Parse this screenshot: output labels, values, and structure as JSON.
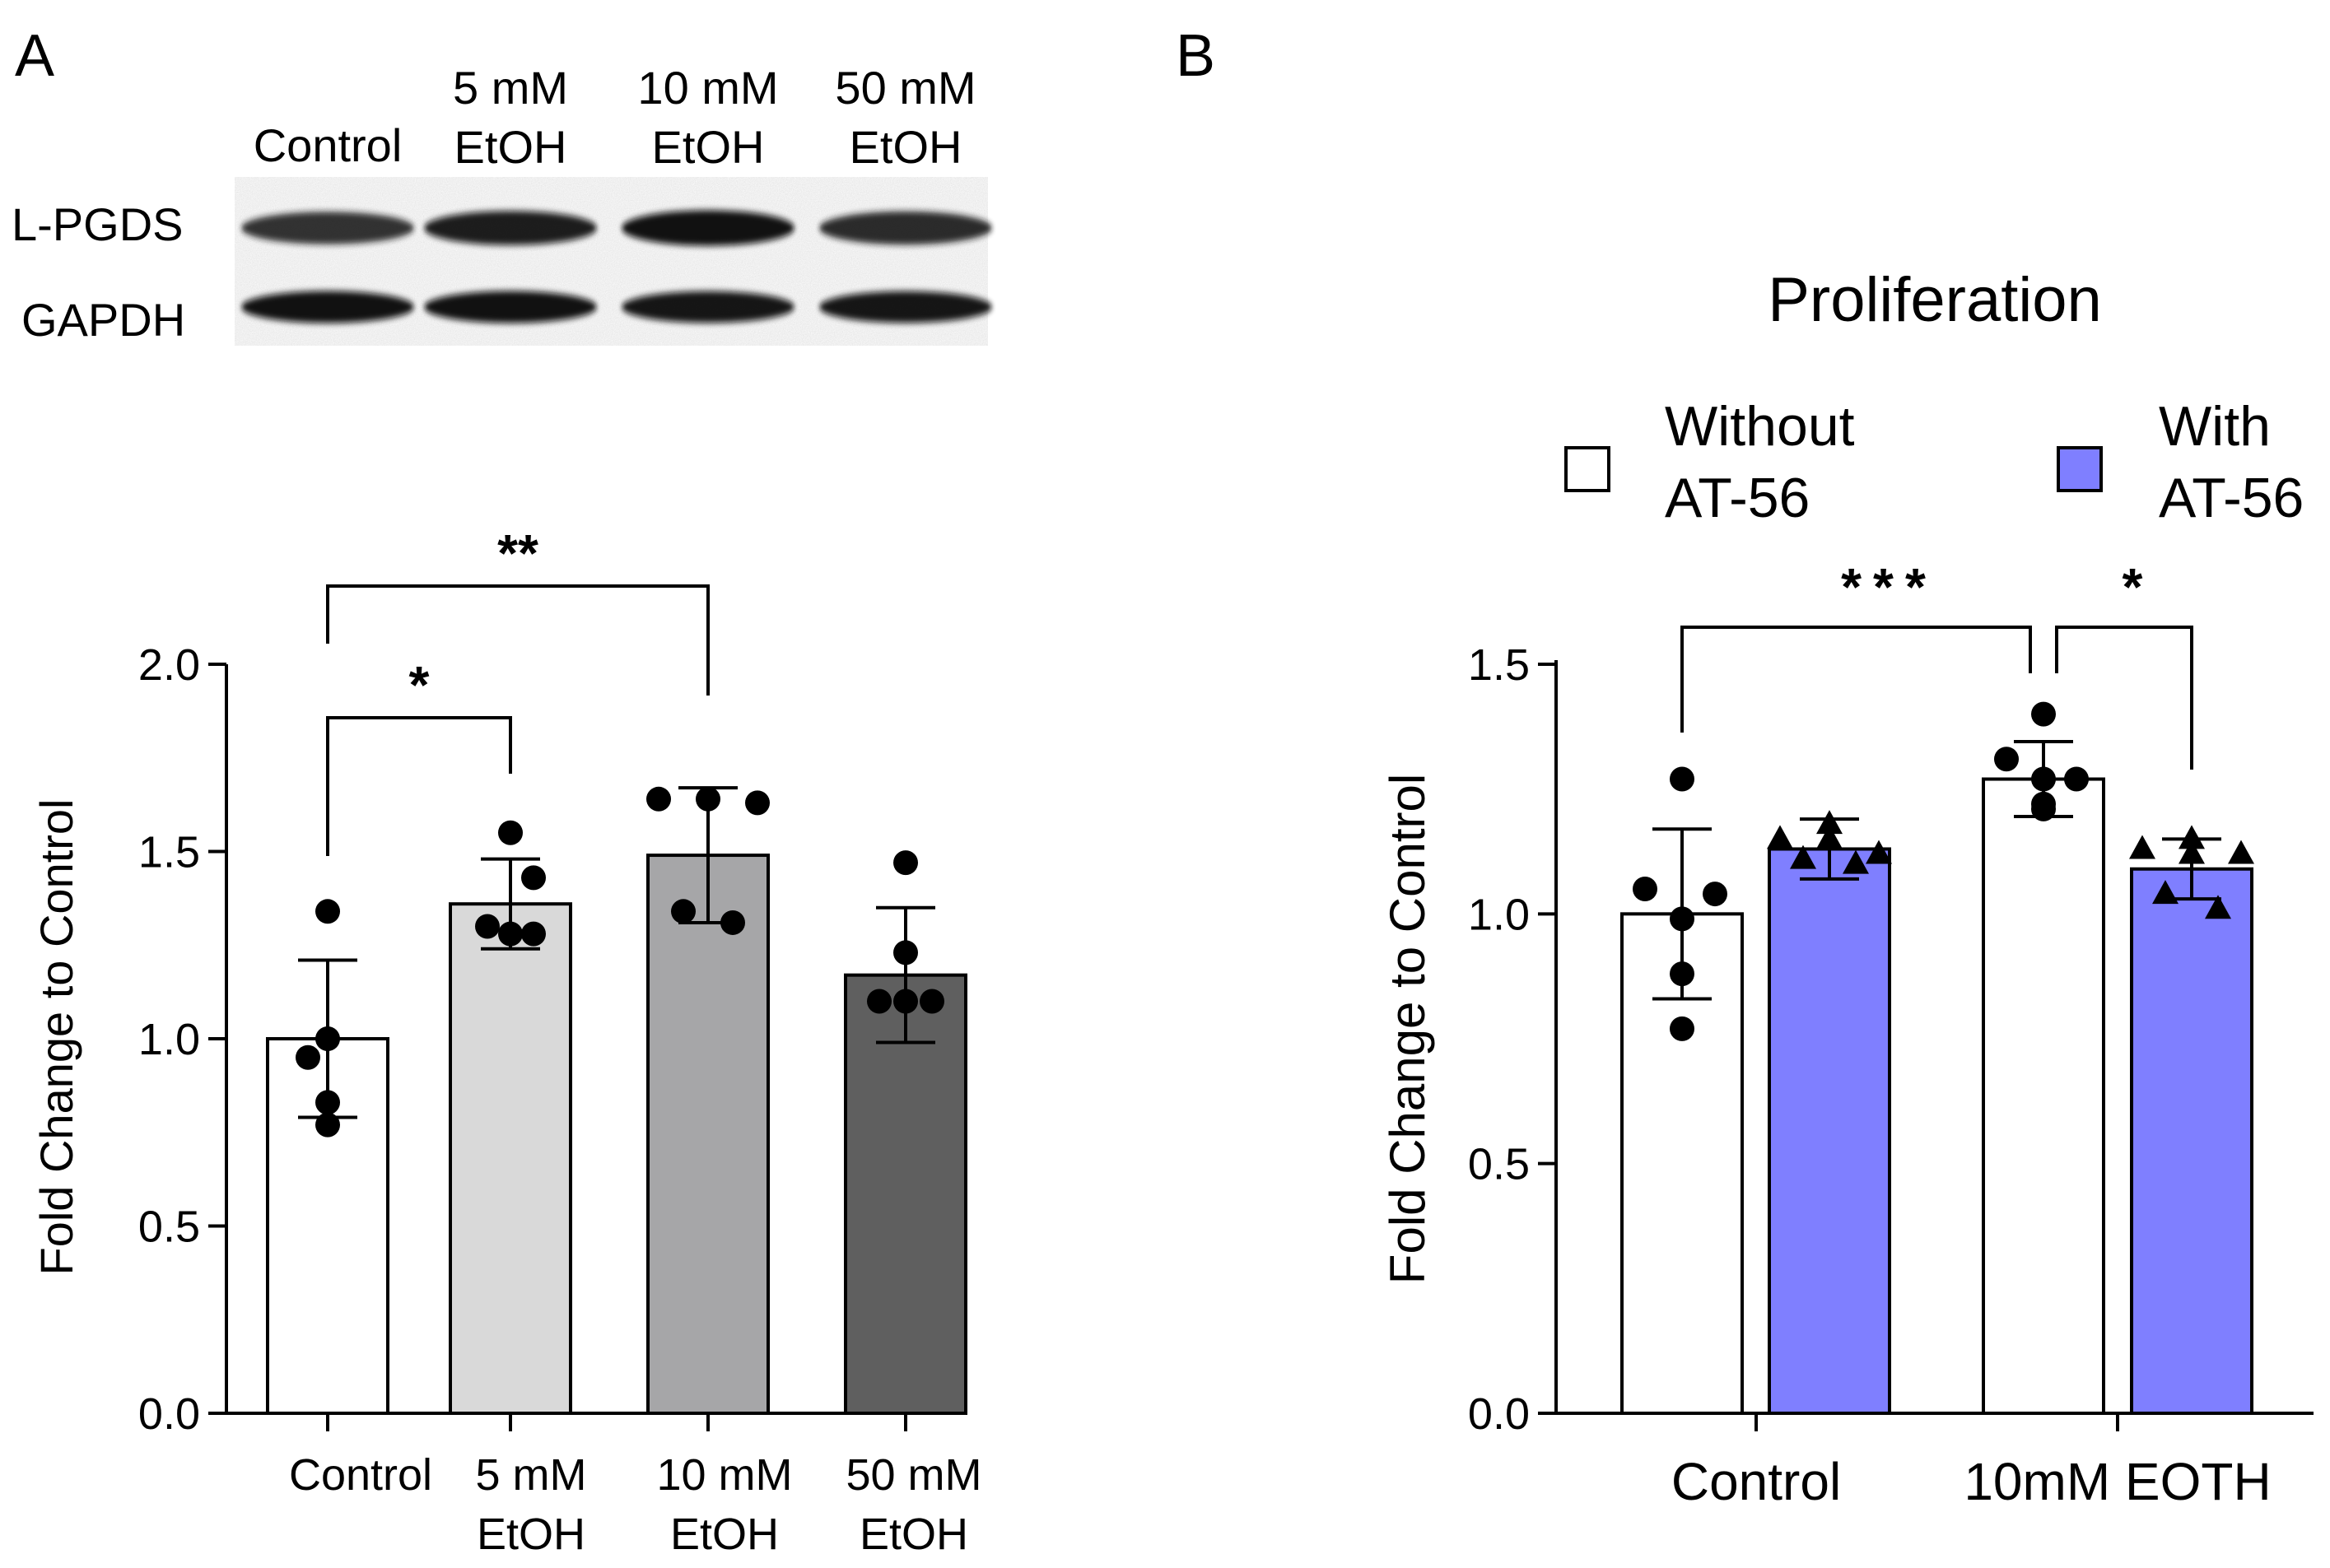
{
  "panel_a": {
    "letter": "A",
    "blot": {
      "lanes": [
        {
          "line1": "Control",
          "line2": ""
        },
        {
          "line1": "5 mM",
          "line2": "EtOH"
        },
        {
          "line1": "10 mM",
          "line2": "EtOH"
        },
        {
          "line1": "50 mM",
          "line2": "EtOH"
        }
      ],
      "rows": [
        "L-PGDS",
        "GAPDH"
      ],
      "band_intensity": {
        "L-PGDS": [
          0.72,
          0.85,
          0.95,
          0.78
        ],
        "GAPDH": [
          0.95,
          0.95,
          0.92,
          0.92
        ]
      }
    }
  },
  "panel_b": {
    "letter": "B",
    "legend": {
      "without_line1": "Without",
      "without_line2": "AT-56",
      "with_line1": "With",
      "with_line2": "AT-56"
    }
  },
  "chart_data": [
    {
      "type": "bar",
      "title": "",
      "xlabel": "",
      "ylabel": "Fold Change to Control",
      "ylim": [
        0,
        2.0
      ],
      "yticks": [
        "0.0",
        "0.5",
        "1.0",
        "1.5",
        "2.0"
      ],
      "ytick_values": [
        0,
        0.5,
        1.0,
        1.5,
        2.0
      ],
      "categories": [
        {
          "line1": "Control",
          "line2": ""
        },
        {
          "line1": "5 mM",
          "line2": "EtOH"
        },
        {
          "line1": "10 mM",
          "line2": "EtOH"
        },
        {
          "line1": "50 mM",
          "line2": "EtOH"
        }
      ],
      "values": [
        1.0,
        1.36,
        1.49,
        1.17
      ],
      "errors": [
        0.21,
        0.12,
        0.18,
        0.18
      ],
      "colors": [
        "#ffffff",
        "#d9d9d9",
        "#a6a6a8",
        "#5f5f5f"
      ],
      "points": [
        [
          1.34,
          1.0,
          0.95,
          0.83,
          0.77
        ],
        [
          1.55,
          1.43,
          1.3,
          1.28,
          1.28
        ],
        [
          1.64,
          1.64,
          1.63,
          1.34,
          1.31
        ],
        [
          1.47,
          1.23,
          1.1,
          1.1,
          1.1
        ]
      ],
      "significance": [
        {
          "from": 0,
          "to": 1,
          "label": "*"
        },
        {
          "from": 0,
          "to": 2,
          "label": "**"
        }
      ]
    },
    {
      "type": "bar",
      "title": "Proliferation",
      "xlabel": "",
      "ylabel": "Fold Change to Control",
      "ylim": [
        0,
        1.5
      ],
      "yticks": [
        "0.0",
        "0.5",
        "1.0",
        "1.5"
      ],
      "ytick_values": [
        0,
        0.5,
        1.0,
        1.5
      ],
      "categories": [
        "Control",
        "10mM EOTH"
      ],
      "series": [
        {
          "name": "Without AT-56",
          "color": "#ffffff",
          "values": [
            1.0,
            1.27
          ],
          "errors": [
            0.17,
            0.075
          ],
          "points": [
            [
              1.27,
              1.05,
              1.04,
              0.99,
              0.88,
              0.77
            ],
            [
              1.4,
              1.31,
              1.27,
              1.27,
              1.22,
              1.21
            ]
          ],
          "marker": "circle"
        },
        {
          "name": "With AT-56",
          "color": "#7f7fff",
          "values": [
            1.13,
            1.09
          ],
          "errors": [
            0.06,
            0.06
          ],
          "points": [
            [
              1.18,
              1.15,
              1.15,
              1.12,
              1.11,
              1.1
            ],
            [
              1.15,
              1.13,
              1.12,
              1.12,
              1.04,
              1.01
            ]
          ],
          "marker": "triangle"
        }
      ],
      "significance": [
        {
          "from": [
            0,
            0
          ],
          "to": [
            1,
            0
          ],
          "label": "***"
        },
        {
          "from": [
            1,
            0
          ],
          "to": [
            1,
            1
          ],
          "label": "*"
        }
      ]
    }
  ]
}
